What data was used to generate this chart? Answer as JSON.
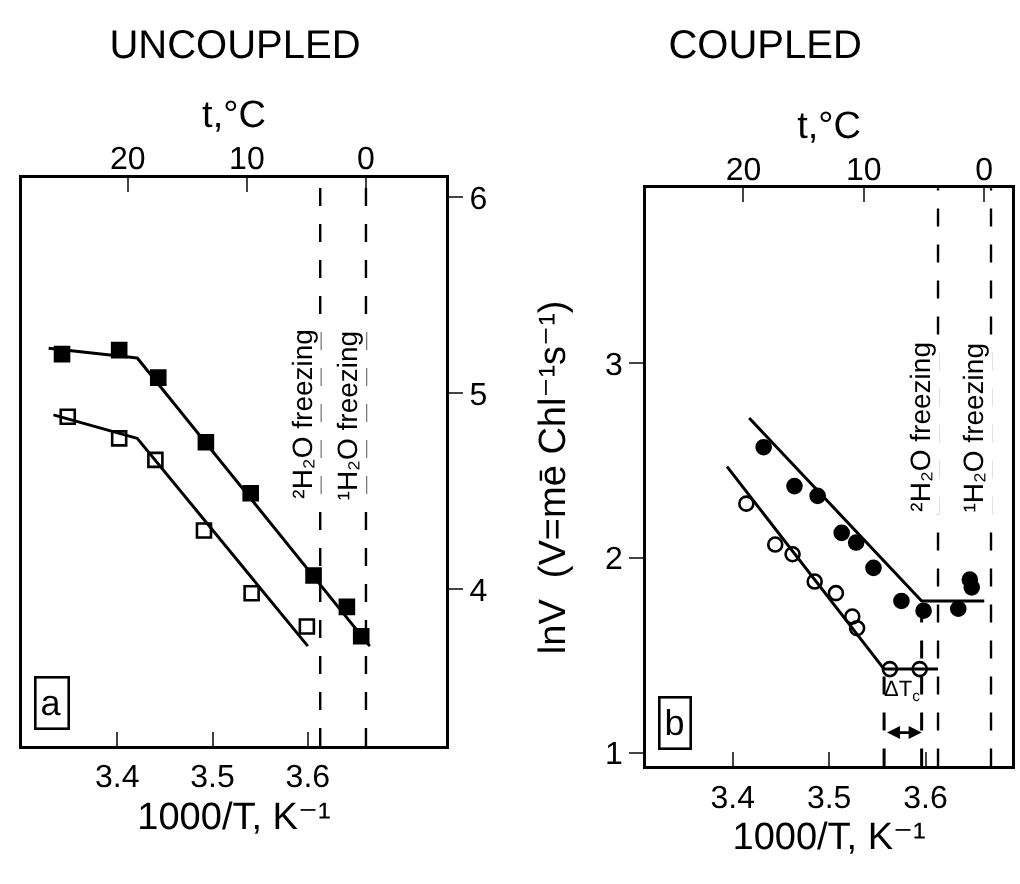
{
  "chart_data": [
    {
      "type": "scatter",
      "title": "UNCOUPLED",
      "xlabel": "1000/T, K⁻¹",
      "x2label": "t,°C",
      "xlim": [
        3.3,
        3.745
      ],
      "ylim": [
        3.2,
        6.1
      ],
      "xticks": [
        3.4,
        3.5,
        3.6
      ],
      "yticks": [
        4,
        5,
        6
      ],
      "x2lim": [
        28.88,
        -6.72
      ],
      "x2ticks": [
        20,
        10,
        0
      ],
      "grid": false,
      "series": [
        {
          "type": "scatter",
          "marker": "square",
          "color": "#000000",
          "x": [
            3.342,
            3.402,
            3.443,
            3.493,
            3.54,
            3.606,
            3.641,
            3.656
          ],
          "values": [
            5.2,
            5.22,
            5.08,
            4.75,
            4.49,
            4.07,
            3.91,
            3.76
          ]
        },
        {
          "type": "scatter",
          "marker": "square-open",
          "color": "#000000",
          "x": [
            3.348,
            3.402,
            3.44,
            3.491,
            3.541,
            3.599
          ],
          "values": [
            4.88,
            4.77,
            4.66,
            4.3,
            3.98,
            3.81
          ]
        },
        {
          "type": "line",
          "marker": "none",
          "line_style": "solid",
          "color": "#000000",
          "x": [
            3.328,
            3.421,
            3.665
          ],
          "values": [
            5.23,
            5.18,
            3.71
          ]
        },
        {
          "type": "line",
          "marker": "none",
          "line_style": "solid",
          "color": "#000000",
          "x": [
            3.333,
            3.421,
            3.6
          ],
          "values": [
            4.89,
            4.77,
            3.71
          ]
        }
      ],
      "ref_lines": [
        {
          "axis": "x",
          "value": 3.613,
          "label": "²H₂O freezing",
          "line_style": "dashed",
          "color": "#000000"
        },
        {
          "axis": "x",
          "value": 3.661,
          "label": "¹H₂O freezing",
          "line_style": "dashed",
          "color": "#000000"
        }
      ],
      "annotations": [
        "a"
      ]
    },
    {
      "type": "scatter",
      "title": "COUPLED",
      "xlabel": "1000/T, K⁻¹",
      "ylabel": "lnV  (V=mē Chl⁻¹s⁻¹)",
      "x2label": "t,°C",
      "xlim": [
        3.31,
        3.69
      ],
      "ylim": [
        0.93,
        3.9
      ],
      "xticks": [
        3.4,
        3.5,
        3.6
      ],
      "yticks": [
        1,
        2,
        3
      ],
      "x2lim": [
        28.08,
        -2.32
      ],
      "x2ticks": [
        20,
        10,
        0
      ],
      "grid": false,
      "series": [
        {
          "type": "scatter",
          "marker": "circle",
          "color": "#000000",
          "x": [
            3.432,
            3.464,
            3.488,
            3.513,
            3.528,
            3.546,
            3.575,
            3.598,
            3.634,
            3.646,
            3.648
          ],
          "values": [
            2.57,
            2.37,
            2.32,
            2.13,
            2.08,
            1.95,
            1.78,
            1.73,
            1.74,
            1.89,
            1.85
          ]
        },
        {
          "type": "scatter",
          "marker": "circle-open",
          "color": "#000000",
          "x": [
            3.414,
            3.444,
            3.462,
            3.485,
            3.507,
            3.524,
            3.529,
            3.563,
            3.594
          ],
          "values": [
            2.28,
            2.07,
            2.02,
            1.88,
            1.82,
            1.7,
            1.64,
            1.43,
            1.43
          ]
        },
        {
          "type": "line",
          "marker": "none",
          "line_style": "solid",
          "color": "#000000",
          "x": [
            3.417,
            3.596,
            3.661
          ],
          "values": [
            2.72,
            1.78,
            1.78
          ]
        },
        {
          "type": "line",
          "marker": "none",
          "line_style": "solid",
          "color": "#000000",
          "x": [
            3.394,
            3.557,
            3.613
          ],
          "values": [
            2.47,
            1.43,
            1.43
          ]
        },
        {
          "type": "line",
          "marker": "none",
          "line_style": "dashed",
          "color": "#000000",
          "x": [
            3.557,
            3.557
          ],
          "values": [
            0.93,
            1.43
          ]
        },
        {
          "type": "line",
          "marker": "none",
          "line_style": "dashed",
          "color": "#000000",
          "x": [
            3.596,
            3.596
          ],
          "values": [
            0.93,
            1.78
          ]
        }
      ],
      "ref_lines": [
        {
          "axis": "x",
          "value": 3.613,
          "label": "²H₂O freezing",
          "line_style": "dashed",
          "color": "#000000"
        },
        {
          "axis": "x",
          "value": 3.668,
          "label": "¹H₂O freezing",
          "line_style": "dashed",
          "color": "#000000"
        }
      ],
      "annotations": [
        "b",
        "ΔT$_{c}$"
      ]
    }
  ]
}
